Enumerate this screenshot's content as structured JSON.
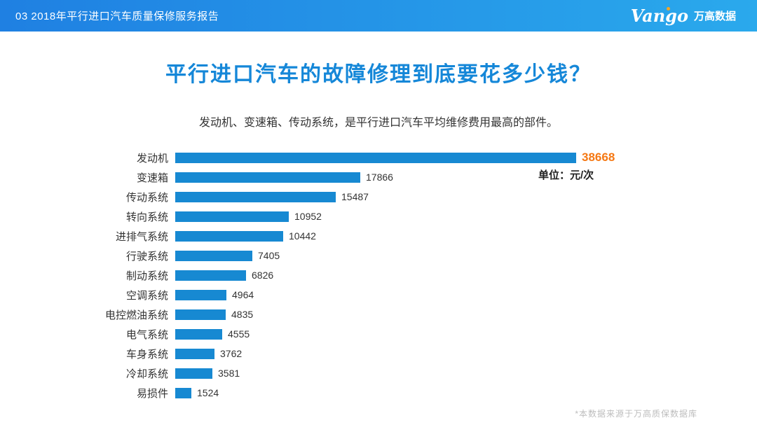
{
  "header": {
    "report_label": "03 2018年平行进口汽车质量保修服务报告",
    "logo": {
      "brand": "Vango",
      "brand_cn": "万高数据"
    }
  },
  "main": {
    "title": "平行进口汽车的故障修理到底要花多少钱？",
    "subtitle": "发动机、变速箱、传动系统，是平行进口汽车平均维修费用最高的部件。",
    "unit_label": "单位：元/次",
    "footnote": "*本数据来源于万高质保数据库"
  },
  "chart_data": {
    "type": "bar",
    "orientation": "horizontal",
    "title": "平行进口汽车的故障修理到底要花多少钱？",
    "unit": "元/次",
    "categories": [
      "发动机",
      "变速箱",
      "传动系统",
      "转向系统",
      "进排气系统",
      "行驶系统",
      "制动系统",
      "空调系统",
      "电控燃油系统",
      "电气系统",
      "车身系统",
      "冷却系统",
      "易损件"
    ],
    "values": [
      38668,
      17866,
      15487,
      10952,
      10442,
      7405,
      6826,
      4964,
      4835,
      4555,
      3762,
      3581,
      1524
    ],
    "xlim": [
      0,
      38668
    ],
    "grid": false,
    "legend": "none",
    "bar_color": "#1789d2",
    "value_color": "#333333",
    "highlight_index": 0,
    "highlight_color": "#f57813"
  }
}
